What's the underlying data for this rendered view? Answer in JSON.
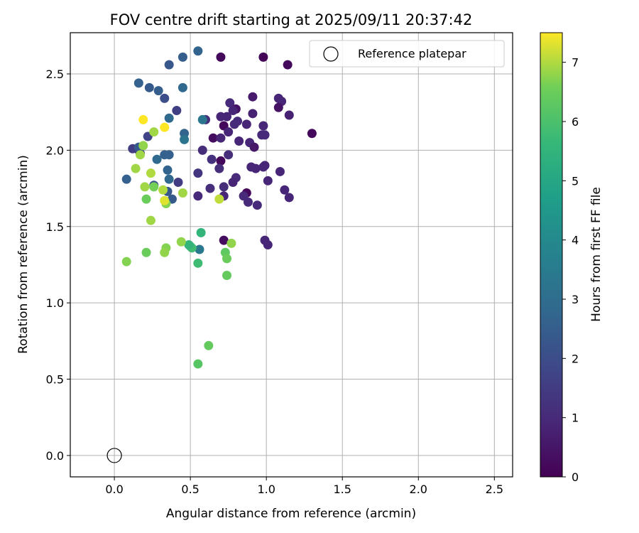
{
  "chart_data": {
    "type": "scatter",
    "title": "FOV centre drift starting at 2025/09/11 20:37:42",
    "xlabel": "Angular distance from reference (arcmin)",
    "ylabel": "Rotation from reference (arcmin)",
    "xlim": [
      -0.29,
      2.62
    ],
    "ylim": [
      -0.14,
      2.77
    ],
    "xticks": [
      0.0,
      0.5,
      1.0,
      1.5,
      2.0,
      2.5
    ],
    "yticks": [
      0.0,
      0.5,
      1.0,
      1.5,
      2.0,
      2.5
    ],
    "xtick_labels": [
      "0.0",
      "0.5",
      "1.0",
      "1.5",
      "2.0",
      "2.5"
    ],
    "ytick_labels": [
      "0.0",
      "0.5",
      "1.0",
      "1.5",
      "2.0",
      "2.5"
    ],
    "grid": true,
    "legend": {
      "position": "top-right",
      "label": "Reference platepar"
    },
    "reference_point": {
      "x": 0.0,
      "y": 0.0
    },
    "colorbar": {
      "label": "Hours from first FF file",
      "range": [
        0,
        7.5
      ],
      "ticks": [
        0,
        1,
        2,
        3,
        4,
        5,
        6,
        7
      ],
      "tick_labels": [
        "0",
        "1",
        "2",
        "3",
        "4",
        "5",
        "6",
        "7"
      ],
      "colormap": "viridis"
    },
    "points": [
      {
        "x": 0.7,
        "y": 2.61,
        "c": 0.2
      },
      {
        "x": 0.98,
        "y": 2.61,
        "c": 0.1
      },
      {
        "x": 1.14,
        "y": 2.56,
        "c": 0.2
      },
      {
        "x": 1.3,
        "y": 2.11,
        "c": 0.2
      },
      {
        "x": 0.91,
        "y": 2.35,
        "c": 0.6
      },
      {
        "x": 1.08,
        "y": 2.34,
        "c": 0.9
      },
      {
        "x": 1.1,
        "y": 2.32,
        "c": 0.9
      },
      {
        "x": 1.08,
        "y": 2.28,
        "c": 0.4
      },
      {
        "x": 1.15,
        "y": 2.23,
        "c": 0.8
      },
      {
        "x": 0.76,
        "y": 2.31,
        "c": 1.0
      },
      {
        "x": 0.8,
        "y": 2.27,
        "c": 0.4
      },
      {
        "x": 0.91,
        "y": 2.24,
        "c": 0.8
      },
      {
        "x": 0.78,
        "y": 2.26,
        "c": 0.9
      },
      {
        "x": 0.7,
        "y": 2.22,
        "c": 0.9
      },
      {
        "x": 0.74,
        "y": 2.22,
        "c": 0.9
      },
      {
        "x": 0.81,
        "y": 2.19,
        "c": 1.0
      },
      {
        "x": 0.79,
        "y": 2.17,
        "c": 1.0
      },
      {
        "x": 0.87,
        "y": 2.17,
        "c": 0.9
      },
      {
        "x": 0.72,
        "y": 2.16,
        "c": 0.2
      },
      {
        "x": 0.98,
        "y": 2.16,
        "c": 0.9
      },
      {
        "x": 0.75,
        "y": 2.12,
        "c": 0.9
      },
      {
        "x": 0.97,
        "y": 2.1,
        "c": 1.0
      },
      {
        "x": 0.99,
        "y": 2.1,
        "c": 1.0
      },
      {
        "x": 0.65,
        "y": 2.08,
        "c": 0.3
      },
      {
        "x": 0.7,
        "y": 2.08,
        "c": 0.9
      },
      {
        "x": 0.82,
        "y": 2.06,
        "c": 0.9
      },
      {
        "x": 0.89,
        "y": 2.05,
        "c": 0.9
      },
      {
        "x": 0.92,
        "y": 2.02,
        "c": 0.5
      },
      {
        "x": 0.58,
        "y": 2.0,
        "c": 1.1
      },
      {
        "x": 0.75,
        "y": 1.97,
        "c": 1.1
      },
      {
        "x": 0.64,
        "y": 1.94,
        "c": 1.2
      },
      {
        "x": 0.7,
        "y": 1.93,
        "c": 0.2
      },
      {
        "x": 0.9,
        "y": 1.89,
        "c": 0.9
      },
      {
        "x": 0.93,
        "y": 1.88,
        "c": 0.9
      },
      {
        "x": 0.98,
        "y": 1.89,
        "c": 0.9
      },
      {
        "x": 0.99,
        "y": 1.9,
        "c": 0.9
      },
      {
        "x": 0.69,
        "y": 1.88,
        "c": 1.1
      },
      {
        "x": 1.09,
        "y": 1.86,
        "c": 0.9
      },
      {
        "x": 0.55,
        "y": 1.85,
        "c": 1.3
      },
      {
        "x": 0.8,
        "y": 1.82,
        "c": 1.0
      },
      {
        "x": 1.01,
        "y": 1.8,
        "c": 0.9
      },
      {
        "x": 0.78,
        "y": 1.79,
        "c": 0.9
      },
      {
        "x": 0.42,
        "y": 1.79,
        "c": 1.5
      },
      {
        "x": 0.72,
        "y": 1.76,
        "c": 1.1
      },
      {
        "x": 0.63,
        "y": 1.75,
        "c": 1.1
      },
      {
        "x": 1.12,
        "y": 1.74,
        "c": 0.9
      },
      {
        "x": 0.87,
        "y": 1.72,
        "c": 0.2
      },
      {
        "x": 0.85,
        "y": 1.7,
        "c": 1.0
      },
      {
        "x": 0.55,
        "y": 1.7,
        "c": 1.0
      },
      {
        "x": 0.72,
        "y": 1.7,
        "c": 0.9
      },
      {
        "x": 1.15,
        "y": 1.69,
        "c": 0.9
      },
      {
        "x": 0.88,
        "y": 1.66,
        "c": 1.0
      },
      {
        "x": 0.94,
        "y": 1.64,
        "c": 1.0
      },
      {
        "x": 0.72,
        "y": 1.41,
        "c": 0.3
      },
      {
        "x": 0.99,
        "y": 1.41,
        "c": 0.9
      },
      {
        "x": 1.01,
        "y": 1.38,
        "c": 0.9
      },
      {
        "x": 0.41,
        "y": 2.26,
        "c": 1.6
      },
      {
        "x": 0.6,
        "y": 2.2,
        "c": 1.1
      },
      {
        "x": 0.33,
        "y": 2.34,
        "c": 2.0
      },
      {
        "x": 0.16,
        "y": 2.0,
        "c": 1.6
      },
      {
        "x": 0.12,
        "y": 2.01,
        "c": 1.5
      },
      {
        "x": 0.17,
        "y": 1.98,
        "c": 1.7
      },
      {
        "x": 0.55,
        "y": 2.65,
        "c": 2.7
      },
      {
        "x": 0.45,
        "y": 2.61,
        "c": 2.5
      },
      {
        "x": 0.36,
        "y": 2.56,
        "c": 2.3
      },
      {
        "x": 0.16,
        "y": 2.44,
        "c": 2.6
      },
      {
        "x": 0.23,
        "y": 2.41,
        "c": 2.4
      },
      {
        "x": 0.29,
        "y": 2.39,
        "c": 2.5
      },
      {
        "x": 0.45,
        "y": 2.41,
        "c": 2.8
      },
      {
        "x": 0.36,
        "y": 2.21,
        "c": 2.9
      },
      {
        "x": 0.58,
        "y": 2.2,
        "c": 3.3
      },
      {
        "x": 0.46,
        "y": 2.11,
        "c": 2.7
      },
      {
        "x": 0.46,
        "y": 2.07,
        "c": 3.2
      },
      {
        "x": 0.22,
        "y": 2.09,
        "c": 1.7
      },
      {
        "x": 0.33,
        "y": 1.97,
        "c": 2.6
      },
      {
        "x": 0.36,
        "y": 1.97,
        "c": 2.6
      },
      {
        "x": 0.28,
        "y": 1.94,
        "c": 2.9
      },
      {
        "x": 0.35,
        "y": 1.87,
        "c": 2.7
      },
      {
        "x": 0.08,
        "y": 1.81,
        "c": 2.6
      },
      {
        "x": 0.36,
        "y": 1.81,
        "c": 2.8
      },
      {
        "x": 0.26,
        "y": 1.77,
        "c": 2.2
      },
      {
        "x": 0.35,
        "y": 1.73,
        "c": 2.3
      },
      {
        "x": 0.38,
        "y": 1.68,
        "c": 2.4
      },
      {
        "x": 0.56,
        "y": 1.35,
        "c": 3.4
      },
      {
        "x": 0.16,
        "y": 2.02,
        "c": 2.4
      },
      {
        "x": 0.5,
        "y": 1.37,
        "c": 5.3
      },
      {
        "x": 0.57,
        "y": 1.46,
        "c": 5.5
      },
      {
        "x": 0.55,
        "y": 1.26,
        "c": 5.8
      },
      {
        "x": 0.51,
        "y": 1.36,
        "c": 5.8
      },
      {
        "x": 0.49,
        "y": 1.38,
        "c": 5.5
      },
      {
        "x": 0.74,
        "y": 1.18,
        "c": 6.4
      },
      {
        "x": 0.62,
        "y": 0.72,
        "c": 6.4
      },
      {
        "x": 0.55,
        "y": 0.6,
        "c": 6.2
      },
      {
        "x": 0.73,
        "y": 1.33,
        "c": 6.3
      },
      {
        "x": 0.74,
        "y": 1.29,
        "c": 6.5
      },
      {
        "x": 0.77,
        "y": 1.39,
        "c": 6.8
      },
      {
        "x": 0.44,
        "y": 1.4,
        "c": 6.8
      },
      {
        "x": 0.34,
        "y": 1.36,
        "c": 6.7
      },
      {
        "x": 0.33,
        "y": 1.33,
        "c": 6.8
      },
      {
        "x": 0.21,
        "y": 1.33,
        "c": 6.5
      },
      {
        "x": 0.08,
        "y": 1.27,
        "c": 6.7
      },
      {
        "x": 0.24,
        "y": 1.54,
        "c": 6.9
      },
      {
        "x": 0.34,
        "y": 1.65,
        "c": 6.7
      },
      {
        "x": 0.33,
        "y": 1.67,
        "c": 7.3
      },
      {
        "x": 0.21,
        "y": 1.68,
        "c": 6.5
      },
      {
        "x": 0.32,
        "y": 1.74,
        "c": 7.0
      },
      {
        "x": 0.45,
        "y": 1.72,
        "c": 6.9
      },
      {
        "x": 0.2,
        "y": 1.76,
        "c": 6.9
      },
      {
        "x": 0.26,
        "y": 1.76,
        "c": 6.6
      },
      {
        "x": 0.24,
        "y": 1.85,
        "c": 7.0
      },
      {
        "x": 0.14,
        "y": 1.88,
        "c": 6.9
      },
      {
        "x": 0.17,
        "y": 1.97,
        "c": 6.9
      },
      {
        "x": 0.19,
        "y": 2.03,
        "c": 6.8
      },
      {
        "x": 0.26,
        "y": 2.12,
        "c": 6.9
      },
      {
        "x": 0.33,
        "y": 2.15,
        "c": 7.5
      },
      {
        "x": 0.19,
        "y": 2.2,
        "c": 7.5
      },
      {
        "x": 0.69,
        "y": 1.68,
        "c": 7.1
      }
    ]
  }
}
